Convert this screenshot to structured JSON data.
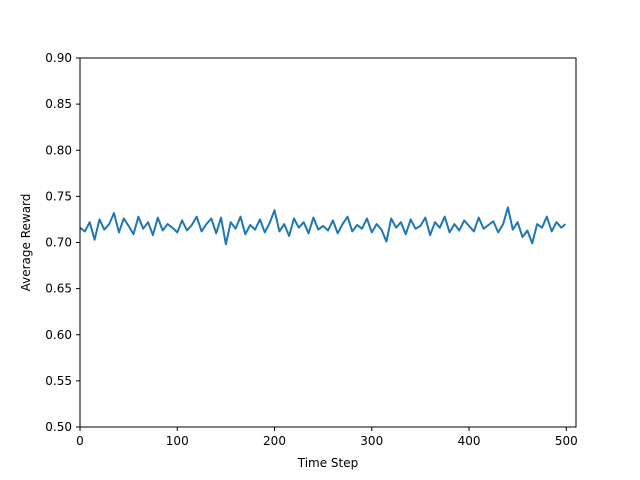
{
  "chart_data": {
    "type": "line",
    "title": "",
    "xlabel": "Time Step",
    "ylabel": "Average Reward",
    "xlim": [
      0,
      510
    ],
    "ylim": [
      0.5,
      0.9
    ],
    "xticks": [
      0,
      100,
      200,
      300,
      400,
      500
    ],
    "yticks": [
      0.5,
      0.55,
      0.6,
      0.65,
      0.7,
      0.75,
      0.8,
      0.85,
      0.9
    ],
    "grid": false,
    "legend": "none",
    "series": [
      {
        "color": "#1f77b4",
        "x": [
          0,
          5,
          10,
          15,
          20,
          25,
          30,
          35,
          40,
          45,
          50,
          55,
          60,
          65,
          70,
          75,
          80,
          85,
          90,
          95,
          100,
          105,
          110,
          115,
          120,
          125,
          130,
          135,
          140,
          145,
          150,
          155,
          160,
          165,
          170,
          175,
          180,
          185,
          190,
          195,
          200,
          205,
          210,
          215,
          220,
          225,
          230,
          235,
          240,
          245,
          250,
          255,
          260,
          265,
          270,
          275,
          280,
          285,
          290,
          295,
          300,
          305,
          310,
          315,
          320,
          325,
          330,
          335,
          340,
          345,
          350,
          355,
          360,
          365,
          370,
          375,
          380,
          385,
          390,
          395,
          400,
          405,
          410,
          415,
          420,
          425,
          430,
          435,
          440,
          445,
          450,
          455,
          460,
          465,
          470,
          475,
          480,
          485,
          490,
          495,
          499
        ],
        "y": [
          0.716,
          0.712,
          0.722,
          0.703,
          0.725,
          0.714,
          0.72,
          0.732,
          0.711,
          0.726,
          0.718,
          0.709,
          0.728,
          0.715,
          0.722,
          0.708,
          0.727,
          0.713,
          0.72,
          0.716,
          0.711,
          0.724,
          0.713,
          0.719,
          0.728,
          0.712,
          0.72,
          0.726,
          0.71,
          0.727,
          0.698,
          0.722,
          0.715,
          0.728,
          0.709,
          0.719,
          0.714,
          0.725,
          0.711,
          0.721,
          0.735,
          0.712,
          0.72,
          0.707,
          0.726,
          0.716,
          0.722,
          0.71,
          0.727,
          0.714,
          0.718,
          0.713,
          0.724,
          0.71,
          0.72,
          0.728,
          0.712,
          0.719,
          0.715,
          0.726,
          0.711,
          0.72,
          0.714,
          0.701,
          0.726,
          0.716,
          0.722,
          0.709,
          0.725,
          0.715,
          0.718,
          0.727,
          0.708,
          0.722,
          0.716,
          0.728,
          0.711,
          0.72,
          0.713,
          0.724,
          0.718,
          0.712,
          0.727,
          0.715,
          0.719,
          0.723,
          0.711,
          0.72,
          0.738,
          0.714,
          0.722,
          0.706,
          0.713,
          0.699,
          0.72,
          0.716,
          0.728,
          0.712,
          0.722,
          0.716,
          0.72
        ]
      }
    ]
  }
}
